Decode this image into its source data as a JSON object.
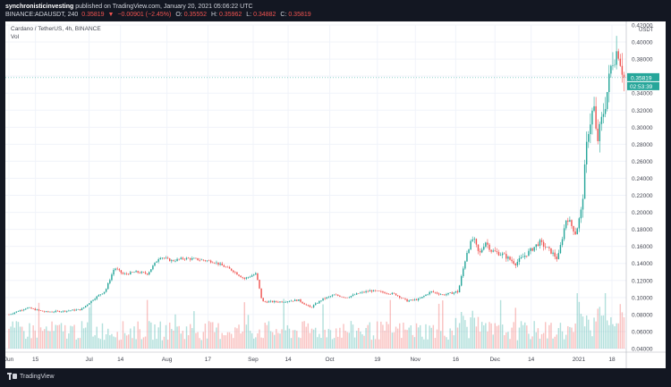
{
  "header": {
    "publisher": "synchronisticinvesting",
    "published_text": " published on TradingView.com, January 20, 2021 05:06:22 UTC",
    "symbol_line": "BINANCE:ADAUSDT, 240",
    "last": "0.35819",
    "change": "−0.00901 (−2.45%)",
    "open_label": "O:",
    "open": "0.35552",
    "high_label": "H:",
    "high": "0.35962",
    "low_label": "L:",
    "low": "0.34882",
    "close_label": "C:",
    "close": "0.35819"
  },
  "panel": {
    "series_title": "Cardano / TetherUS, 4h, BINANCE",
    "volume_label": "Vol",
    "currency": "USDT",
    "price_tag": "0.35819",
    "countdown_tag": "02:53:39"
  },
  "footer": {
    "brand": "TradingView"
  },
  "colors": {
    "up": "#26a69a",
    "down": "#ef5350",
    "price_tag": "#26a69a",
    "grid": "#f0f3fa",
    "axis_text": "#434651"
  },
  "chart_data": {
    "type": "candlestick",
    "title": "Cardano / TetherUS, 4h, BINANCE",
    "ylim": [
      0.04,
      0.42
    ],
    "yticks": [
      "0.42000",
      "0.40000",
      "0.38000",
      "0.36000",
      "0.34000",
      "0.32000",
      "0.30000",
      "0.28000",
      "0.26000",
      "0.24000",
      "0.22000",
      "0.20000",
      "0.18000",
      "0.16000",
      "0.14000",
      "0.12000",
      "0.10000",
      "0.08000",
      "0.06000",
      "0.04000"
    ],
    "xticks": [
      {
        "label": "Jun",
        "t": 0.0
      },
      {
        "label": "15",
        "t": 0.044
      },
      {
        "label": "Jul",
        "t": 0.133
      },
      {
        "label": "14",
        "t": 0.185
      },
      {
        "label": "Aug",
        "t": 0.262
      },
      {
        "label": "17",
        "t": 0.33
      },
      {
        "label": "Sep",
        "t": 0.405
      },
      {
        "label": "14",
        "t": 0.463
      },
      {
        "label": "Oct",
        "t": 0.532
      },
      {
        "label": "19",
        "t": 0.611
      },
      {
        "label": "Nov",
        "t": 0.674
      },
      {
        "label": "16",
        "t": 0.741
      },
      {
        "label": "Dec",
        "t": 0.806
      },
      {
        "label": "14",
        "t": 0.866
      },
      {
        "label": "2021",
        "t": 0.945
      },
      {
        "label": "18",
        "t": 1.0
      }
    ],
    "price_path": [
      [
        0.0,
        0.08
      ],
      [
        0.03,
        0.088
      ],
      [
        0.06,
        0.083
      ],
      [
        0.09,
        0.084
      ],
      [
        0.12,
        0.086
      ],
      [
        0.14,
        0.098
      ],
      [
        0.16,
        0.108
      ],
      [
        0.175,
        0.135
      ],
      [
        0.19,
        0.127
      ],
      [
        0.21,
        0.13
      ],
      [
        0.23,
        0.128
      ],
      [
        0.25,
        0.148
      ],
      [
        0.27,
        0.143
      ],
      [
        0.29,
        0.146
      ],
      [
        0.31,
        0.145
      ],
      [
        0.34,
        0.142
      ],
      [
        0.37,
        0.132
      ],
      [
        0.39,
        0.122
      ],
      [
        0.41,
        0.128
      ],
      [
        0.42,
        0.095
      ],
      [
        0.45,
        0.095
      ],
      [
        0.48,
        0.097
      ],
      [
        0.5,
        0.088
      ],
      [
        0.52,
        0.098
      ],
      [
        0.54,
        0.103
      ],
      [
        0.56,
        0.1
      ],
      [
        0.58,
        0.105
      ],
      [
        0.6,
        0.108
      ],
      [
        0.62,
        0.106
      ],
      [
        0.64,
        0.104
      ],
      [
        0.66,
        0.096
      ],
      [
        0.68,
        0.098
      ],
      [
        0.7,
        0.107
      ],
      [
        0.72,
        0.103
      ],
      [
        0.745,
        0.107
      ],
      [
        0.76,
        0.155
      ],
      [
        0.77,
        0.17
      ],
      [
        0.78,
        0.15
      ],
      [
        0.79,
        0.166
      ],
      [
        0.8,
        0.155
      ],
      [
        0.82,
        0.15
      ],
      [
        0.84,
        0.14
      ],
      [
        0.86,
        0.152
      ],
      [
        0.88,
        0.165
      ],
      [
        0.9,
        0.153
      ],
      [
        0.91,
        0.145
      ],
      [
        0.925,
        0.195
      ],
      [
        0.94,
        0.175
      ],
      [
        0.95,
        0.205
      ],
      [
        0.96,
        0.295
      ],
      [
        0.97,
        0.325
      ],
      [
        0.975,
        0.28
      ],
      [
        0.985,
        0.315
      ],
      [
        0.99,
        0.332
      ],
      [
        1.0,
        0.378
      ],
      [
        1.01,
        0.392
      ],
      [
        1.02,
        0.358
      ]
    ],
    "last_price": 0.35819,
    "grid": true,
    "volume_panel": true
  }
}
